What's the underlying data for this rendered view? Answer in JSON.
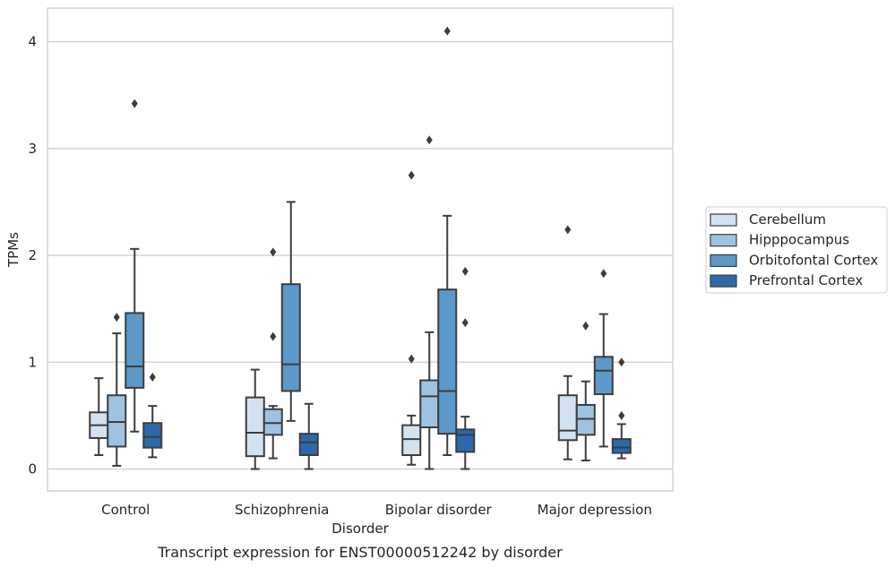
{
  "caption": "Transcript expression for ENST00000512242 by disorder",
  "chart_data": {
    "type": "box",
    "xlabel": "Disorder",
    "ylabel": "TPMs",
    "ylim": [
      -0.2,
      4.3
    ],
    "yticks": [
      0,
      1,
      2,
      3,
      4
    ],
    "grid": "horizontal",
    "legend_position": "right",
    "categories": [
      "Control",
      "Schizophrenia",
      "Bipolar disorder",
      "Major depression"
    ],
    "series": [
      {
        "name": "Cerebellum",
        "color": "#d3e2f1",
        "boxes": [
          {
            "whislo": 0.13,
            "q1": 0.29,
            "med": 0.41,
            "q3": 0.53,
            "whishi": 0.85,
            "fliers": []
          },
          {
            "whislo": 0.0,
            "q1": 0.12,
            "med": 0.34,
            "q3": 0.67,
            "whishi": 0.93,
            "fliers": []
          },
          {
            "whislo": 0.04,
            "q1": 0.13,
            "med": 0.28,
            "q3": 0.41,
            "whishi": 0.5,
            "fliers": [
              1.03,
              2.75
            ]
          },
          {
            "whislo": 0.09,
            "q1": 0.27,
            "med": 0.36,
            "q3": 0.69,
            "whishi": 0.87,
            "fliers": [
              2.24
            ]
          }
        ]
      },
      {
        "name": "Hipppocampus",
        "color": "#9dc3e0",
        "boxes": [
          {
            "whislo": 0.03,
            "q1": 0.21,
            "med": 0.44,
            "q3": 0.69,
            "whishi": 1.27,
            "fliers": [
              1.42
            ]
          },
          {
            "whislo": 0.1,
            "q1": 0.32,
            "med": 0.43,
            "q3": 0.56,
            "whishi": 0.59,
            "fliers": [
              1.24,
              2.03
            ]
          },
          {
            "whislo": 0.0,
            "q1": 0.39,
            "med": 0.68,
            "q3": 0.83,
            "whishi": 1.28,
            "fliers": [
              3.08
            ]
          },
          {
            "whislo": 0.08,
            "q1": 0.32,
            "med": 0.47,
            "q3": 0.6,
            "whishi": 0.82,
            "fliers": [
              1.34
            ]
          }
        ]
      },
      {
        "name": "Orbitofontal Cortex",
        "color": "#5a99c9",
        "boxes": [
          {
            "whislo": 0.35,
            "q1": 0.76,
            "med": 0.96,
            "q3": 1.46,
            "whishi": 2.06,
            "fliers": [
              3.42
            ]
          },
          {
            "whislo": 0.45,
            "q1": 0.73,
            "med": 0.98,
            "q3": 1.73,
            "whishi": 2.5,
            "fliers": []
          },
          {
            "whislo": 0.13,
            "q1": 0.33,
            "med": 0.73,
            "q3": 1.68,
            "whishi": 2.37,
            "fliers": [
              4.1
            ]
          },
          {
            "whislo": 0.21,
            "q1": 0.7,
            "med": 0.92,
            "q3": 1.05,
            "whishi": 1.45,
            "fliers": [
              1.83
            ]
          }
        ]
      },
      {
        "name": "Prefrontal Cortex",
        "color": "#2a6aac",
        "boxes": [
          {
            "whislo": 0.11,
            "q1": 0.2,
            "med": 0.3,
            "q3": 0.43,
            "whishi": 0.59,
            "fliers": [
              0.86
            ]
          },
          {
            "whislo": 0.0,
            "q1": 0.13,
            "med": 0.25,
            "q3": 0.33,
            "whishi": 0.61,
            "fliers": []
          },
          {
            "whislo": 0.0,
            "q1": 0.16,
            "med": 0.32,
            "q3": 0.37,
            "whishi": 0.49,
            "fliers": [
              1.37,
              1.85
            ]
          },
          {
            "whislo": 0.1,
            "q1": 0.15,
            "med": 0.2,
            "q3": 0.28,
            "whishi": 0.42,
            "fliers": [
              0.5,
              1.0
            ]
          }
        ]
      }
    ]
  }
}
